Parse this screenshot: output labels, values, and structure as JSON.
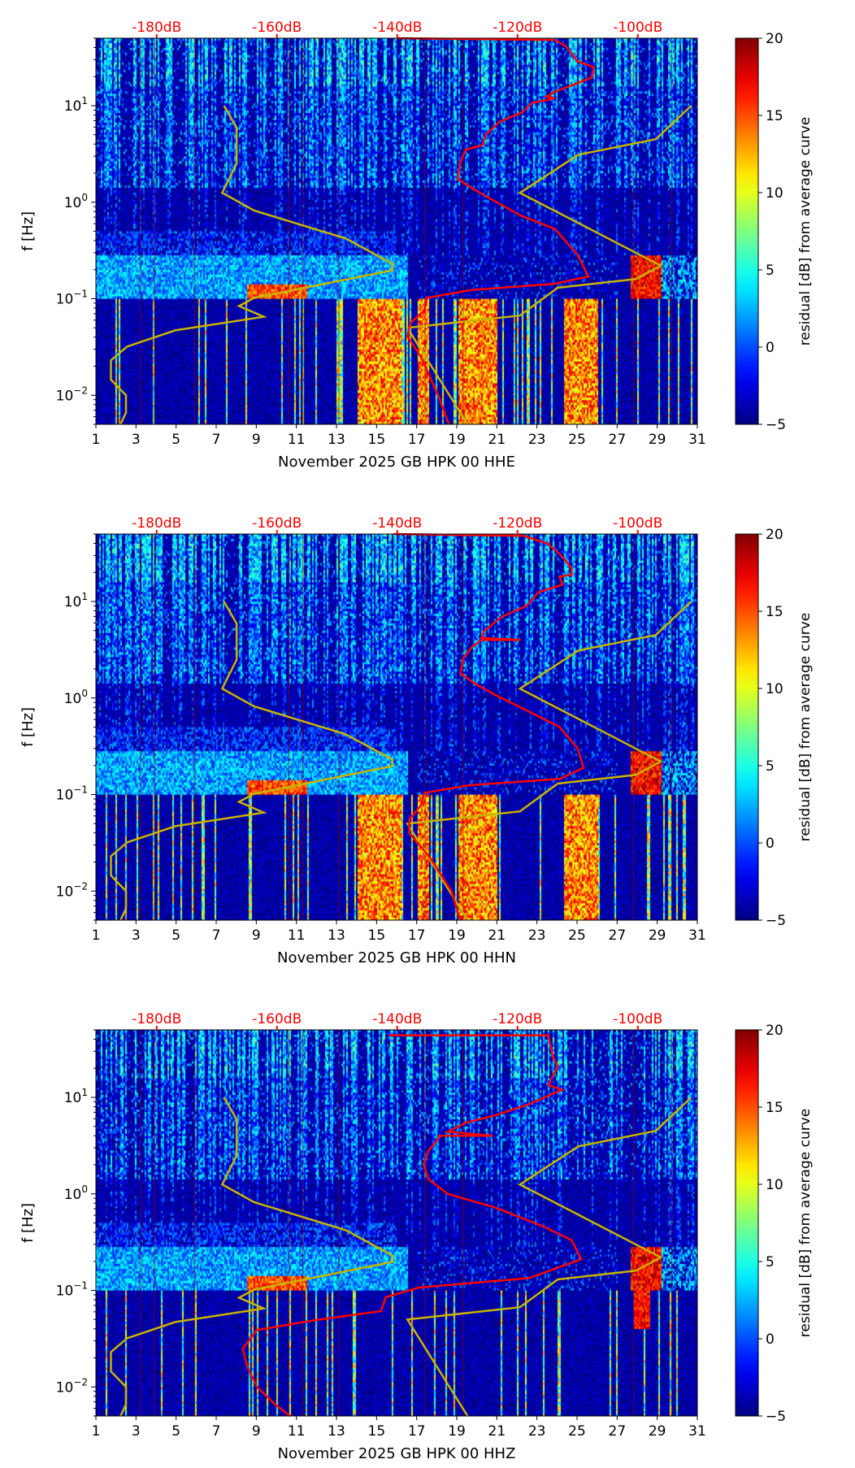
{
  "chart_data": {
    "type": "heatmap",
    "colormap": "jet",
    "x_ticks": [
      "1",
      "3",
      "5",
      "7",
      "9",
      "11",
      "13",
      "15",
      "17",
      "19",
      "21",
      "23",
      "25",
      "27",
      "29",
      "31"
    ],
    "xlim_days": [
      1,
      31
    ],
    "ylabel": "f [Hz]",
    "y_scale": "log",
    "ylim_hz": [
      0.005,
      50
    ],
    "y_ticks": [
      {
        "value": 10,
        "label": "10^1"
      },
      {
        "value": 1,
        "label": "10^0"
      },
      {
        "value": 0.1,
        "label": "10^-1"
      },
      {
        "value": 0.01,
        "label": "10^-2"
      }
    ],
    "top_axis": {
      "color": "#ff0000",
      "ticks": [
        "-180dB",
        "-160dB",
        "-140dB",
        "-120dB",
        "-100dB"
      ],
      "values_db": [
        -180,
        -160,
        -140,
        -120,
        -100
      ]
    },
    "colorbar": {
      "label": "residual [dB] from average curve",
      "range": [
        -5,
        20
      ],
      "ticks": [
        "20",
        "15",
        "10",
        "5",
        "0",
        "−5"
      ]
    },
    "noise_models": {
      "color": "#c8b400",
      "low_noise_model_db_hz": [
        [
          -168.8,
          10
        ],
        [
          -166.7,
          5.9
        ],
        [
          -166.7,
          2.5
        ],
        [
          -169.1,
          1.25
        ],
        [
          -163.8,
          0.82
        ],
        [
          -148.5,
          0.42
        ],
        [
          -140.8,
          0.23
        ],
        [
          -140.8,
          0.197
        ],
        [
          -163.8,
          0.102
        ],
        [
          -166.3,
          0.084
        ],
        [
          -162.2,
          0.065
        ],
        [
          -176.9,
          0.047
        ],
        [
          -184.9,
          0.032
        ],
        [
          -187.6,
          0.023
        ],
        [
          -187.6,
          0.0145
        ],
        [
          -185.1,
          0.01
        ],
        [
          -185.1,
          0.0066
        ],
        [
          -186,
          0.005
        ]
      ],
      "high_noise_model_db_hz": [
        [
          -91.1,
          10
        ],
        [
          -97.0,
          4.5
        ],
        [
          -109.9,
          3.1
        ],
        [
          -119.6,
          1.25
        ],
        [
          -96.2,
          0.22
        ],
        [
          -100.3,
          0.16
        ],
        [
          -113.3,
          0.13
        ],
        [
          -119.6,
          0.067
        ],
        [
          -138.3,
          0.05
        ],
        [
          -128.3,
          0.005
        ]
      ]
    },
    "panels": [
      {
        "xlabel": "November 2025 GB HPK 00 HHE",
        "average_curve_color": "#ff0000",
        "average_curve_db_hz": [
          [
            -139.9,
            50
          ],
          [
            -113.8,
            48
          ],
          [
            -111.9,
            41
          ],
          [
            -110.1,
            29
          ],
          [
            -107.3,
            25
          ],
          [
            -107.7,
            19.5
          ],
          [
            -113.8,
            13.9
          ],
          [
            -115.2,
            12.4
          ],
          [
            -113.8,
            11.9
          ],
          [
            -117.5,
            10.7
          ],
          [
            -119.3,
            8.5
          ],
          [
            -123.0,
            6.8
          ],
          [
            -125.3,
            5.0
          ],
          [
            -125.8,
            3.9
          ],
          [
            -128.6,
            3.5
          ],
          [
            -129.5,
            2.6
          ],
          [
            -130.0,
            1.76
          ],
          [
            -127.7,
            1.41
          ],
          [
            -124.9,
            1.12
          ],
          [
            -119.3,
            0.72
          ],
          [
            -113.8,
            0.53
          ],
          [
            -110.1,
            0.29
          ],
          [
            -108.2,
            0.17
          ],
          [
            -113.8,
            0.143
          ],
          [
            -127.7,
            0.123
          ],
          [
            -135.1,
            0.102
          ],
          [
            -135.5,
            0.076
          ],
          [
            -137.8,
            0.056
          ],
          [
            -138.3,
            0.041
          ],
          [
            -136.0,
            0.0245
          ],
          [
            -133.2,
            0.01
          ],
          [
            -131.4,
            0.005
          ]
        ]
      },
      {
        "xlabel": "November 2025 GB HPK 00 HHN",
        "average_curve_color": "#ff0000",
        "average_curve_db_hz": [
          [
            -140.5,
            50
          ],
          [
            -119.0,
            48
          ],
          [
            -115.0,
            40
          ],
          [
            -112.5,
            29
          ],
          [
            -111.0,
            22
          ],
          [
            -111.0,
            19
          ],
          [
            -113.0,
            18
          ],
          [
            -112.5,
            15
          ],
          [
            -116.5,
            12.5
          ],
          [
            -118.5,
            9
          ],
          [
            -122.5,
            7
          ],
          [
            -125.5,
            5
          ],
          [
            -126.0,
            4.2
          ],
          [
            -119.5,
            4.0
          ],
          [
            -126.0,
            4.0
          ],
          [
            -127.5,
            3.4
          ],
          [
            -129.0,
            2.6
          ],
          [
            -129.5,
            1.8
          ],
          [
            -127.0,
            1.4
          ],
          [
            -124.0,
            1.1
          ],
          [
            -118.0,
            0.72
          ],
          [
            -113.0,
            0.5
          ],
          [
            -110.0,
            0.3
          ],
          [
            -109.0,
            0.19
          ],
          [
            -113.0,
            0.145
          ],
          [
            -128.0,
            0.125
          ],
          [
            -135.5,
            0.104
          ],
          [
            -136.0,
            0.078
          ],
          [
            -138.0,
            0.055
          ],
          [
            -138.0,
            0.04
          ],
          [
            -134.5,
            0.022
          ],
          [
            -131.0,
            0.01
          ],
          [
            -129.5,
            0.005
          ]
        ]
      },
      {
        "xlabel": "November 2025 GB HPK 00 HHZ",
        "average_curve_color": "#ff0000",
        "average_curve_db_hz": [
          [
            -141.4,
            44
          ],
          [
            -114.9,
            44
          ],
          [
            -114.1,
            26
          ],
          [
            -113.3,
            21
          ],
          [
            -114.9,
            13.4
          ],
          [
            -112.6,
            12
          ],
          [
            -118.1,
            8.5
          ],
          [
            -123.7,
            6.5
          ],
          [
            -128.4,
            5.5
          ],
          [
            -131.6,
            4.4
          ],
          [
            -124.1,
            4.0
          ],
          [
            -133.0,
            4.0
          ],
          [
            -133.5,
            3.5
          ],
          [
            -134.8,
            2.8
          ],
          [
            -135.6,
            2.0
          ],
          [
            -134.8,
            1.42
          ],
          [
            -131.6,
            1.0
          ],
          [
            -123.7,
            0.72
          ],
          [
            -115.7,
            0.46
          ],
          [
            -111.0,
            0.33
          ],
          [
            -109.4,
            0.21
          ],
          [
            -118.1,
            0.134
          ],
          [
            -136.4,
            0.107
          ],
          [
            -141.9,
            0.085
          ],
          [
            -142.7,
            0.061
          ],
          [
            -153.8,
            0.049
          ],
          [
            -163.3,
            0.039
          ],
          [
            -165.7,
            0.025
          ],
          [
            -164.9,
            0.016
          ],
          [
            -163.3,
            0.01
          ],
          [
            -160.2,
            0.0065
          ],
          [
            -157.8,
            0.005
          ]
        ]
      }
    ]
  }
}
